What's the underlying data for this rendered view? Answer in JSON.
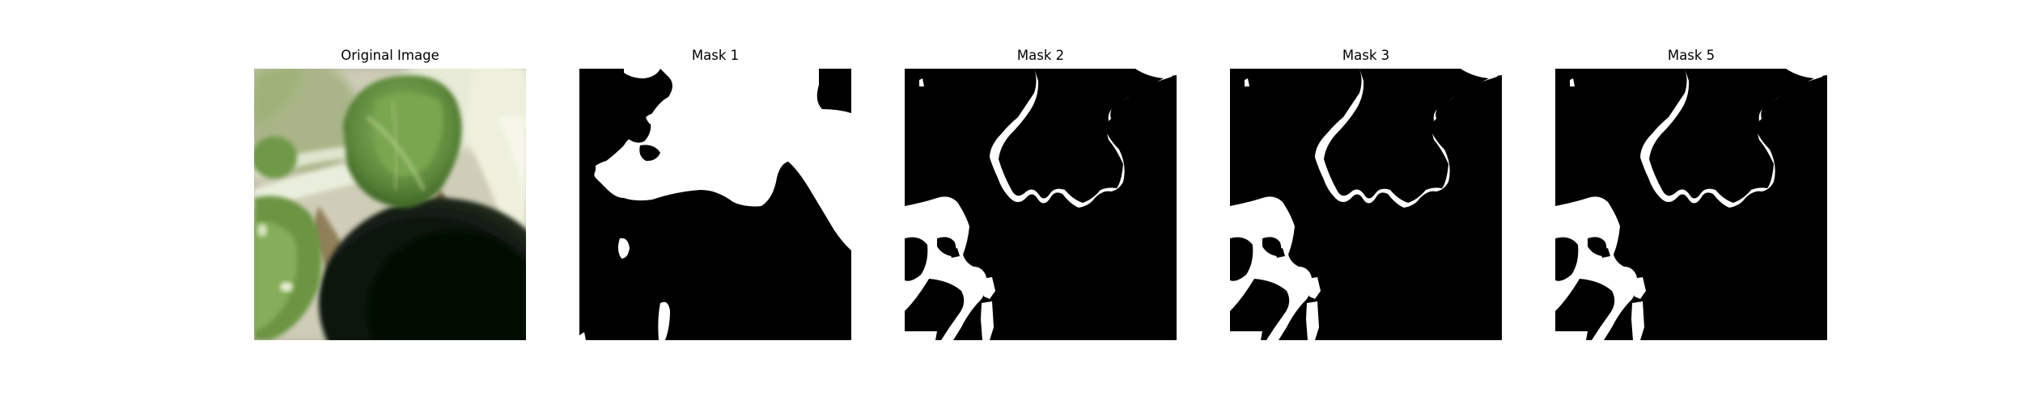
{
  "figure": {
    "panels": [
      {
        "title": "Original Image",
        "kind": "photo"
      },
      {
        "title": "Mask 1",
        "kind": "mask"
      },
      {
        "title": "Mask 2",
        "kind": "mask"
      },
      {
        "title": "Mask 3",
        "kind": "mask"
      },
      {
        "title": "Mask 5",
        "kind": "mask"
      }
    ],
    "colors": {
      "mask_foreground": "#ffffff",
      "mask_background": "#000000",
      "leaf_green": "#6f9a4a",
      "dark_pot": "#0f1510",
      "stem_white": "#e9eedc"
    }
  }
}
